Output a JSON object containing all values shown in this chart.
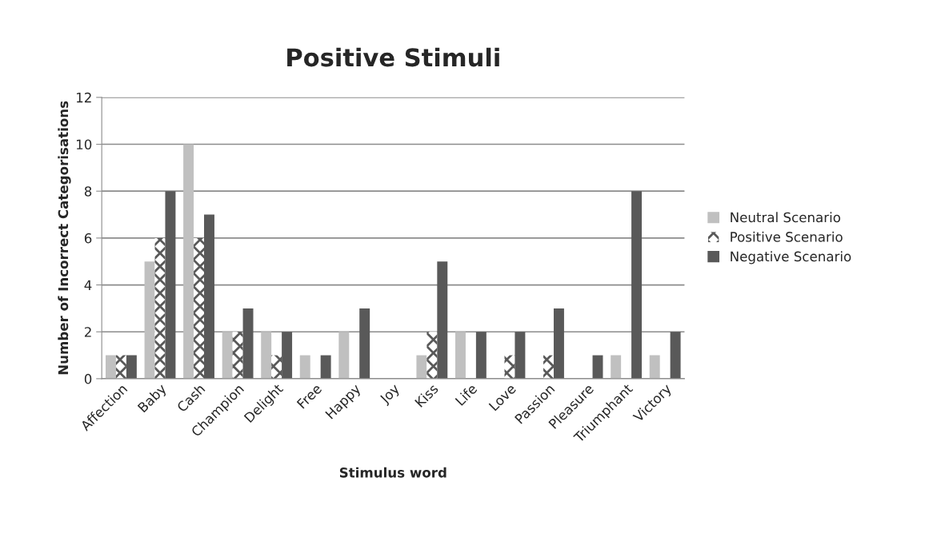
{
  "chart_data": {
    "type": "bar",
    "title": "Positive Stimuli",
    "xlabel": "Stimulus word",
    "ylabel": "Number of Incorrect Categorisations",
    "categories": [
      "Affection",
      "Baby",
      "Cash",
      "Champion",
      "Delight",
      "Free",
      "Happy",
      "Joy",
      "Kiss",
      "Life",
      "Love",
      "Passion",
      "Pleasure",
      "Triumphant",
      "Victory"
    ],
    "series": [
      {
        "name": "Neutral Scenario",
        "color": "#c0c0c0",
        "values": [
          1,
          5,
          10,
          2,
          2,
          1,
          2,
          0,
          1,
          2,
          0,
          0,
          0,
          1,
          1
        ]
      },
      {
        "name": "Positive Scenario",
        "color": "#595959",
        "values": [
          1,
          6,
          6,
          2,
          1,
          0,
          0,
          0,
          2,
          0,
          1,
          1,
          0,
          0,
          0
        ]
      },
      {
        "name": "Negative Scenario",
        "color": "#595959",
        "values": [
          1,
          8,
          7,
          3,
          2,
          1,
          3,
          0,
          5,
          2,
          2,
          3,
          1,
          8,
          2
        ]
      }
    ],
    "ylim": [
      0,
      12
    ],
    "yticks": [
      0,
      2,
      4,
      6,
      8,
      10,
      12
    ],
    "grid": "y",
    "legend": "right"
  }
}
